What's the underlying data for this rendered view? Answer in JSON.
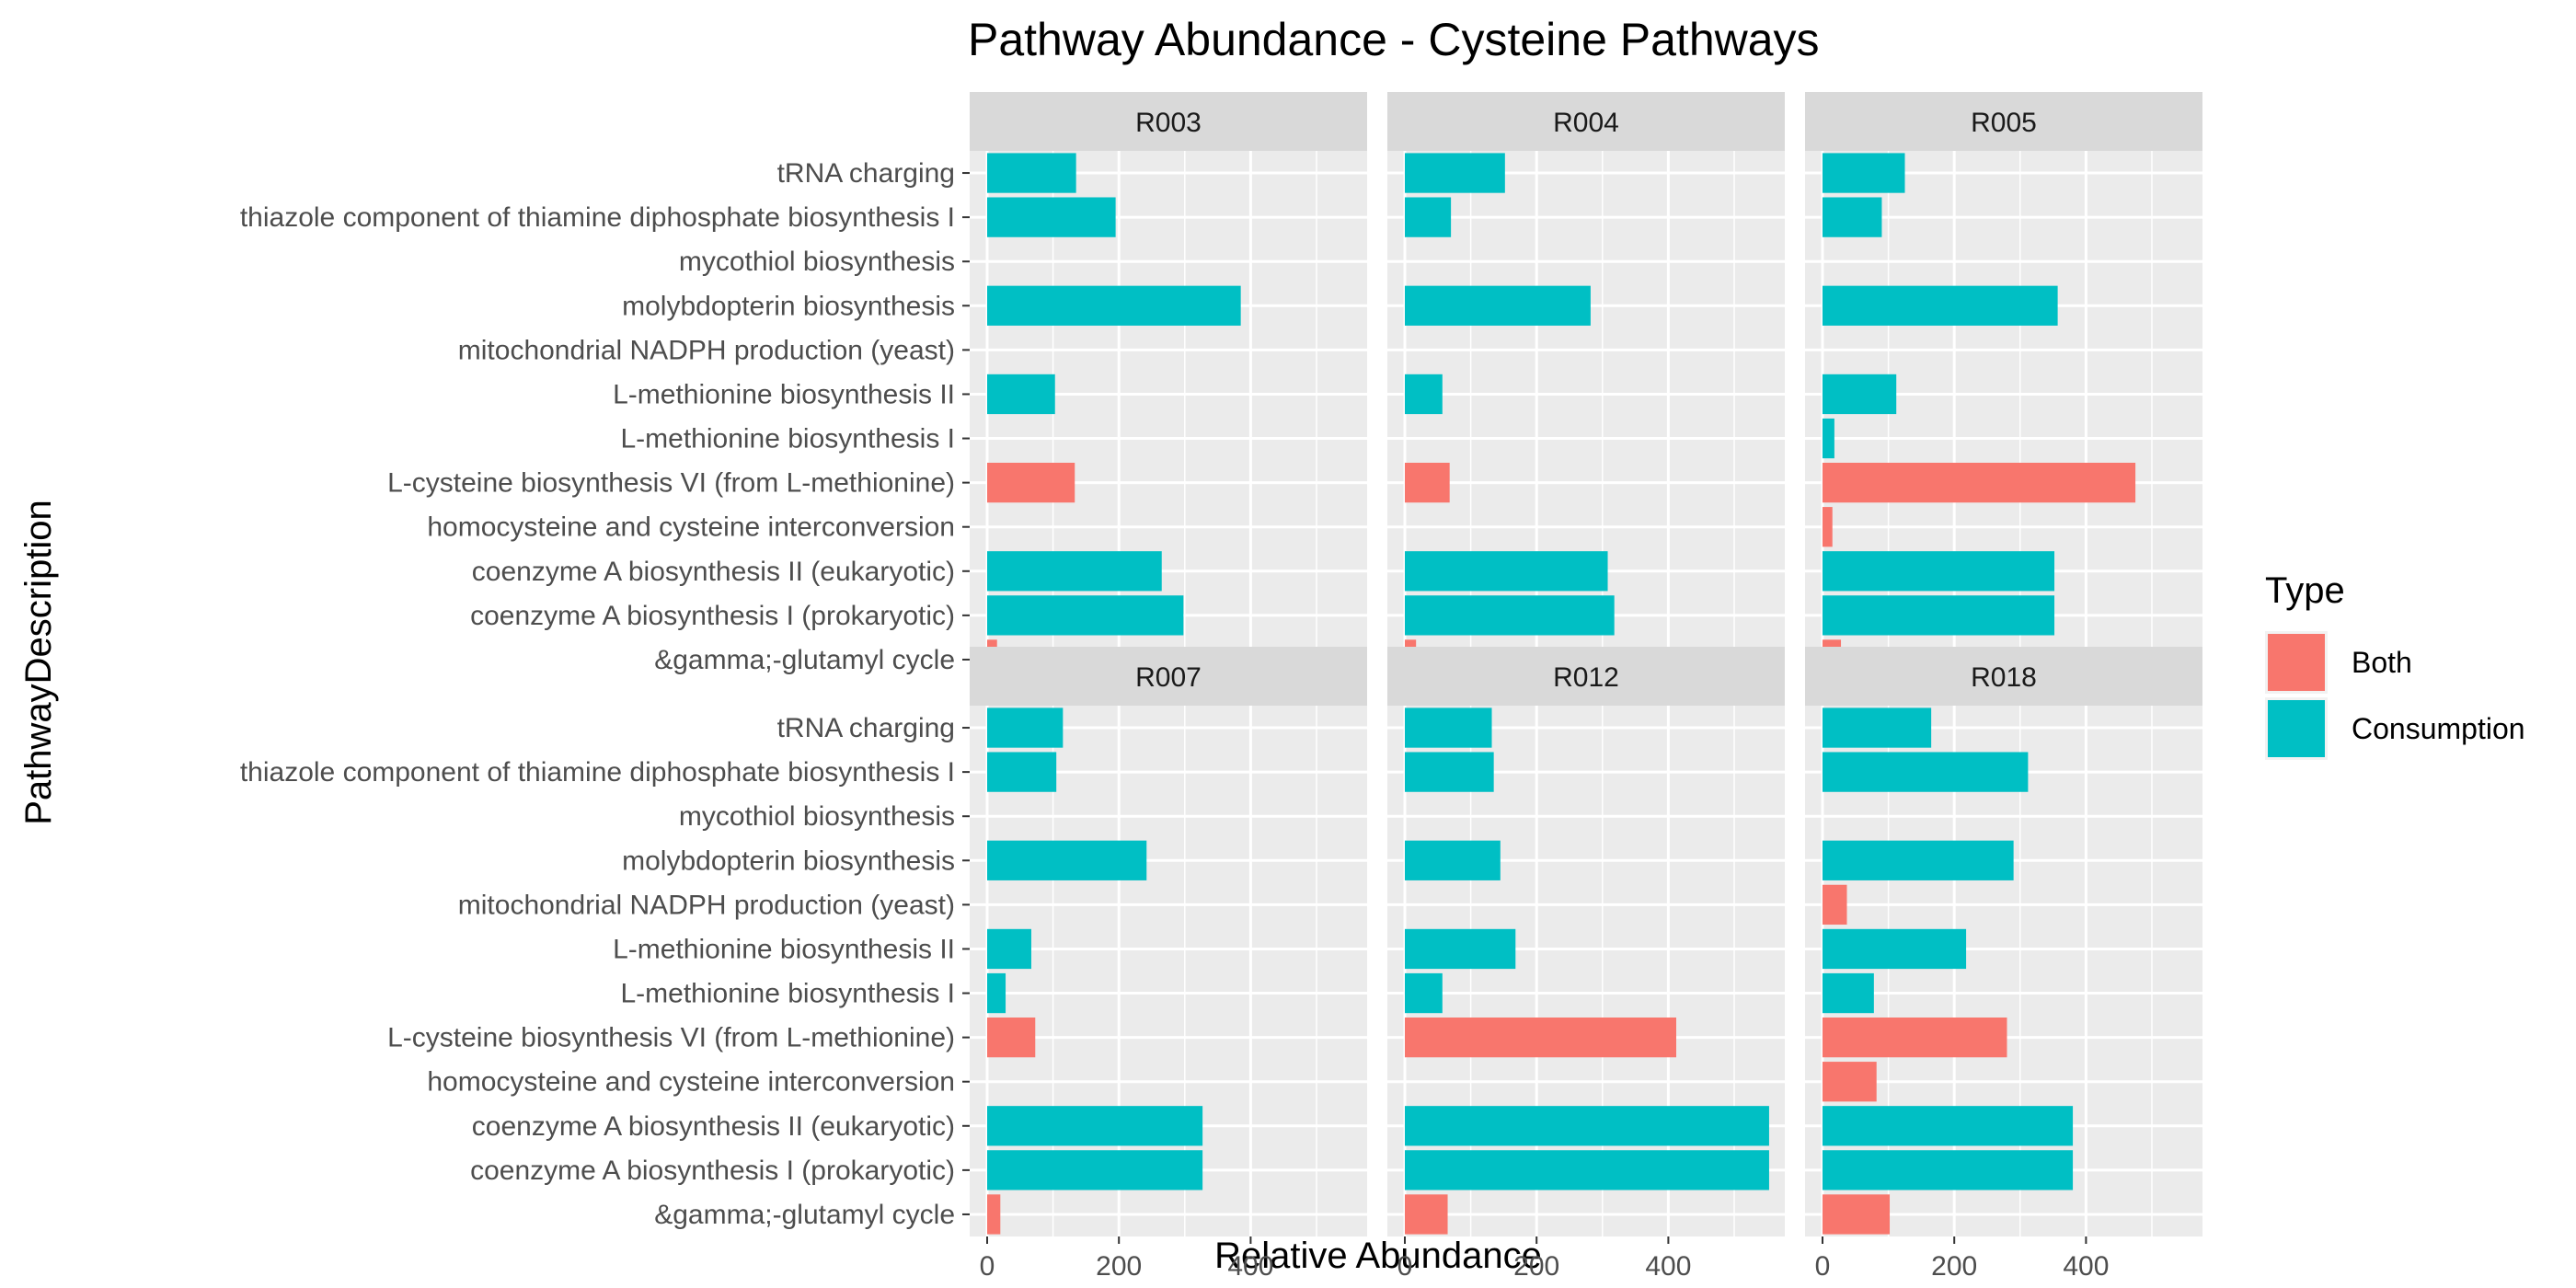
{
  "chart_data": {
    "type": "bar",
    "orientation": "horizontal",
    "title": "Pathway Abundance - Cysteine Pathways",
    "xlabel": "Relative Abundance",
    "ylabel": "PathwayDescription",
    "xlim": [
      0,
      600
    ],
    "xticks": [
      0,
      200,
      400
    ],
    "grid": true,
    "legend": {
      "title": "Type",
      "position": "right",
      "entries": [
        {
          "name": "Both",
          "color": "#F8766D"
        },
        {
          "name": "Consumption",
          "color": "#00BFC4"
        }
      ]
    },
    "categories": [
      "tRNA charging",
      "thiazole component of thiamine diphosphate biosynthesis I",
      "mycothiol biosynthesis",
      "molybdopterin biosynthesis",
      "mitochondrial NADPH production (yeast)",
      "L-methionine biosynthesis II",
      "L-methionine biosynthesis I",
      "L-cysteine biosynthesis VI (from L-methionine)",
      "homocysteine and cysteine interconversion",
      "coenzyme A biosynthesis II (eukaryotic)",
      "coenzyme A biosynthesis I (prokaryotic)",
      "&gamma;-glutamyl cycle"
    ],
    "panels": [
      {
        "name": "R003",
        "values": [
          135,
          195,
          0,
          385,
          0,
          103,
          0,
          133,
          0,
          265,
          298,
          15
        ],
        "types": [
          "Consumption",
          "Consumption",
          "Consumption",
          "Consumption",
          "Both",
          "Consumption",
          "Consumption",
          "Both",
          "Both",
          "Consumption",
          "Consumption",
          "Both"
        ]
      },
      {
        "name": "R004",
        "values": [
          152,
          70,
          0,
          282,
          0,
          57,
          0,
          68,
          0,
          308,
          318,
          17
        ],
        "types": [
          "Consumption",
          "Consumption",
          "Consumption",
          "Consumption",
          "Both",
          "Consumption",
          "Consumption",
          "Both",
          "Both",
          "Consumption",
          "Consumption",
          "Both"
        ]
      },
      {
        "name": "R005",
        "values": [
          125,
          90,
          0,
          357,
          0,
          112,
          18,
          475,
          15,
          352,
          352,
          28
        ],
        "types": [
          "Consumption",
          "Consumption",
          "Consumption",
          "Consumption",
          "Both",
          "Consumption",
          "Consumption",
          "Both",
          "Both",
          "Consumption",
          "Consumption",
          "Both"
        ]
      },
      {
        "name": "R007",
        "values": [
          115,
          105,
          0,
          242,
          0,
          67,
          28,
          73,
          0,
          327,
          327,
          20
        ],
        "types": [
          "Consumption",
          "Consumption",
          "Consumption",
          "Consumption",
          "Both",
          "Consumption",
          "Consumption",
          "Both",
          "Both",
          "Consumption",
          "Consumption",
          "Both"
        ]
      },
      {
        "name": "R012",
        "values": [
          132,
          135,
          0,
          145,
          0,
          168,
          57,
          412,
          0,
          553,
          553,
          65
        ],
        "types": [
          "Consumption",
          "Consumption",
          "Consumption",
          "Consumption",
          "Both",
          "Consumption",
          "Consumption",
          "Both",
          "Both",
          "Consumption",
          "Consumption",
          "Both"
        ]
      },
      {
        "name": "R018",
        "values": [
          165,
          312,
          0,
          290,
          37,
          218,
          78,
          280,
          82,
          380,
          380,
          102
        ],
        "types": [
          "Consumption",
          "Consumption",
          "Consumption",
          "Consumption",
          "Both",
          "Consumption",
          "Consumption",
          "Both",
          "Both",
          "Consumption",
          "Consumption",
          "Both"
        ]
      }
    ]
  }
}
